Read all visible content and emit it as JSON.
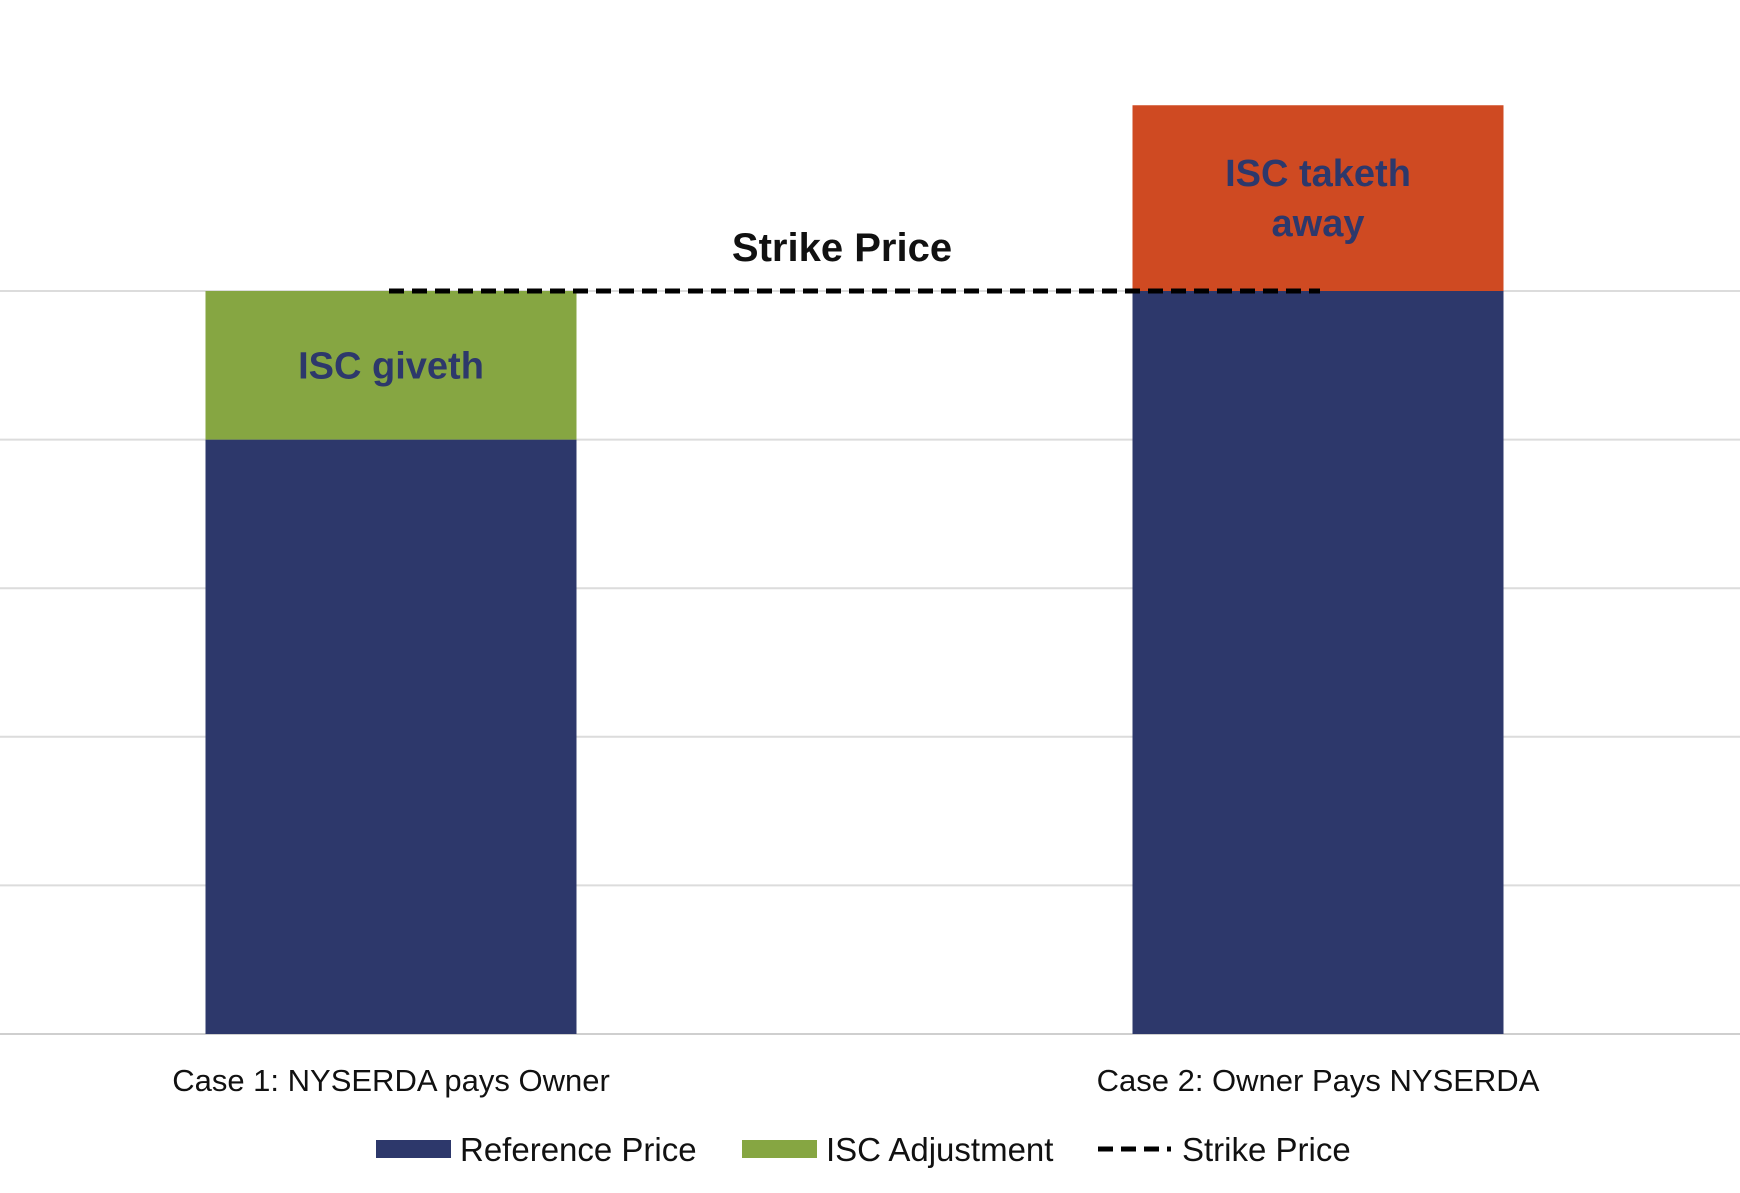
{
  "chart_data": {
    "type": "bar",
    "stacked": true,
    "categories": [
      "Case 1: NYSERDA pays Owner",
      "Case 2: Owner Pays NYSERDA"
    ],
    "series": [
      {
        "name": "Reference Price",
        "values": [
          4,
          5
        ],
        "color": "#2d386b"
      },
      {
        "name": "ISC Adjustment",
        "values": [
          1,
          0
        ],
        "color": "#86a642"
      },
      {
        "name": "",
        "values": [
          0,
          1.25
        ],
        "color": "#cf4a22"
      }
    ],
    "strike_price": {
      "name": "Strike Price",
      "value": 5,
      "color": "#000000",
      "label": "Strike Price"
    },
    "annotations": [
      {
        "text": "ISC giveth",
        "category": 0,
        "series": 1,
        "color": "#2d386b"
      },
      {
        "text": "ISC taketh away",
        "category": 1,
        "series": 2,
        "color": "#2d386b"
      }
    ],
    "ylim": [
      0,
      6
    ],
    "grid": true,
    "legend_position": "bottom",
    "title": "",
    "xlabel": "",
    "ylabel": ""
  }
}
